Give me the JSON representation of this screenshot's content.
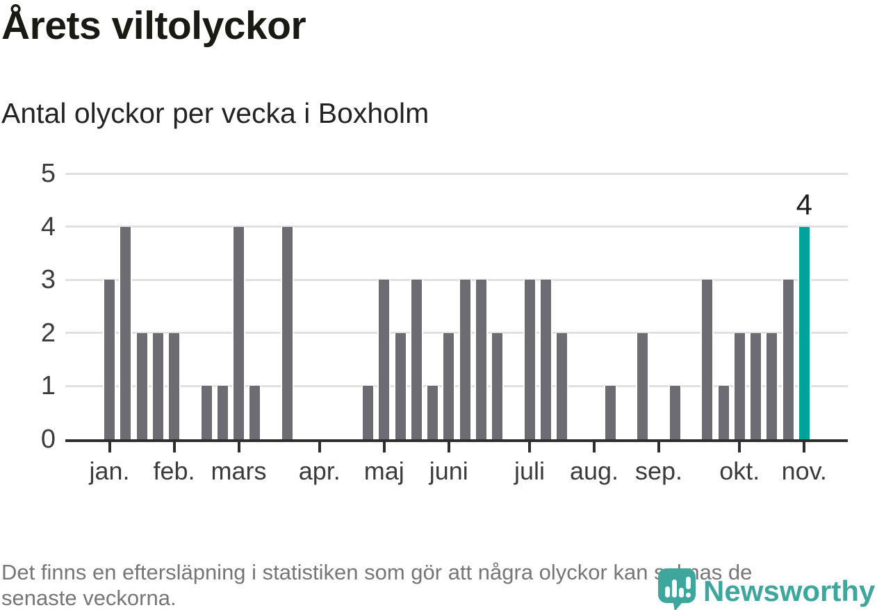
{
  "title": "Årets viltolyckor",
  "subtitle": "Antal olyckor per vecka i Boxholm",
  "footer": {
    "line1": "Det finns en eftersläpning i statistiken som gör att några olyckor kan saknas de",
    "line2": "senaste veckorna."
  },
  "logo": {
    "wordmark": "Newsworthy",
    "icon": "newsworthy-speech-bubble-bar-chart-icon",
    "color": "#3ea69d"
  },
  "colors": {
    "bar": "#6d6c72",
    "highlight": "#00a39b",
    "gridline": "#e0e0e0",
    "axis": "#2e2e2e",
    "title": "#1a1a14",
    "footer": "#767676"
  },
  "chart_data": {
    "type": "bar",
    "title": "Årets viltolyckor",
    "subtitle": "Antal olyckor per vecka i Boxholm",
    "x_unit": "vecka (weekly slots, Jan–Nov)",
    "values": [
      3,
      4,
      2,
      2,
      2,
      0,
      1,
      1,
      4,
      1,
      0,
      4,
      0,
      0,
      0,
      0,
      1,
      3,
      2,
      3,
      1,
      2,
      3,
      3,
      2,
      0,
      3,
      3,
      2,
      0,
      0,
      1,
      0,
      2,
      0,
      1,
      0,
      3,
      1,
      2,
      2,
      2,
      3,
      4
    ],
    "ylim": [
      0,
      5
    ],
    "yticks": [
      0,
      1,
      2,
      3,
      4,
      5
    ],
    "xticks": [
      {
        "slot": 1,
        "label": "jan."
      },
      {
        "slot": 5,
        "label": "feb."
      },
      {
        "slot": 9,
        "label": "mars"
      },
      {
        "slot": 14,
        "label": "apr."
      },
      {
        "slot": 18,
        "label": "maj"
      },
      {
        "slot": 22,
        "label": "juni"
      },
      {
        "slot": 27,
        "label": "juli"
      },
      {
        "slot": 31,
        "label": "aug."
      },
      {
        "slot": 35,
        "label": "sep."
      },
      {
        "slot": 40,
        "label": "okt."
      },
      {
        "slot": 44,
        "label": "nov."
      }
    ],
    "highlight": {
      "slot": 44,
      "value": 4,
      "label": "4"
    },
    "grid": true,
    "legend": "none",
    "bar_color": "#6d6c72",
    "highlight_color": "#00a39b"
  }
}
